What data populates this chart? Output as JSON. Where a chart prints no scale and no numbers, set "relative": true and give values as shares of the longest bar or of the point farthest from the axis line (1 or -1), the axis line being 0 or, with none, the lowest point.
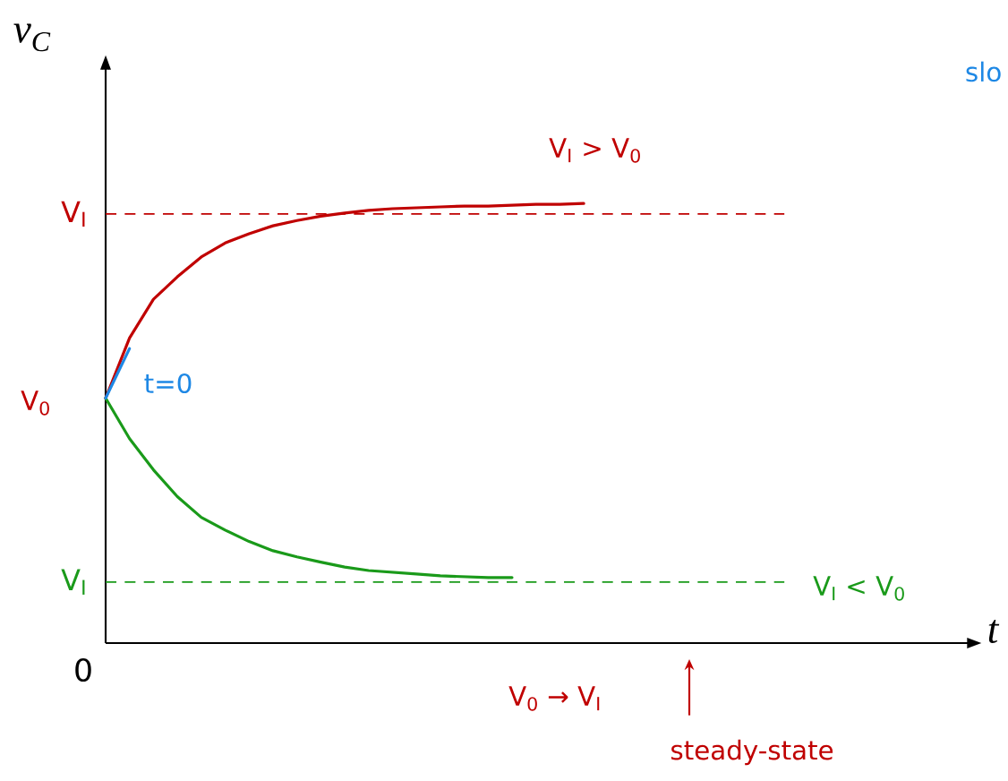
{
  "chart_data": {
    "type": "line",
    "relative": true,
    "xlabel": "t",
    "ylabel": "v$_{C}$",
    "categories": [
      null,
      null,
      null,
      null,
      null,
      null,
      null,
      null,
      null,
      null,
      null,
      null,
      null,
      null,
      null,
      null,
      null,
      null,
      null,
      null,
      null,
      null,
      null,
      null,
      null,
      null,
      null,
      null,
      null,
      null,
      null,
      null,
      null,
      null,
      null,
      null,
      null
    ],
    "series": [
      {
        "color": "#c00000",
        "values": [
          0.557,
          0.694,
          0.782,
          0.833,
          0.878,
          0.91,
          0.931,
          0.949,
          0.961,
          0.971,
          0.978,
          0.984,
          0.988,
          0.99,
          0.992,
          0.994,
          0.994,
          0.996,
          0.998,
          0.998,
          1.0,
          null,
          null,
          null,
          null,
          null,
          null,
          null,
          null,
          null,
          null,
          null,
          null,
          null,
          null,
          null,
          null
        ]
      },
      {
        "color": "#1a9a1a",
        "values": [
          0.557,
          0.465,
          0.394,
          0.333,
          0.286,
          0.257,
          0.231,
          0.21,
          0.196,
          0.184,
          0.173,
          0.165,
          0.161,
          0.157,
          0.153,
          0.151,
          0.149,
          0.149,
          null,
          null,
          null,
          null,
          null,
          null,
          null,
          null,
          null,
          null,
          null,
          null,
          null,
          null,
          null,
          null,
          null,
          null,
          null
        ]
      },
      {
        "color": "#1e88e5",
        "values": [
          0.557,
          0.67,
          null,
          null,
          null,
          null,
          null,
          null,
          null,
          null,
          null,
          null,
          null,
          null,
          null,
          null,
          null,
          null,
          null,
          null,
          null,
          null,
          null,
          null,
          null,
          null,
          null,
          null,
          null,
          null,
          null,
          null,
          null,
          null,
          null,
          null,
          null
        ]
      }
    ],
    "ref_lines": [
      {
        "axis": "y",
        "value": 0.976,
        "label": "V$_{I}$",
        "color": "#c00000",
        "line_style": "dashed"
      },
      {
        "axis": "y",
        "value": 0.139,
        "label": "V$_{I}$",
        "color": "#1a9a1a",
        "line_style": "dashed"
      }
    ],
    "annotations": [
      "0",
      "V$_{0}$",
      "V$_{I}$ > V$_{0}$",
      "V$_{I}$ < V$_{0}$",
      "t=0",
      "V$_{0}$ → V$_{I}$",
      "steady-state",
      "slo"
    ]
  }
}
